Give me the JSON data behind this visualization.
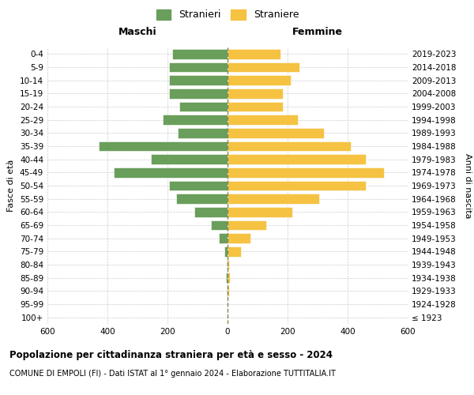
{
  "age_groups": [
    "100+",
    "95-99",
    "90-94",
    "85-89",
    "80-84",
    "75-79",
    "70-74",
    "65-69",
    "60-64",
    "55-59",
    "50-54",
    "45-49",
    "40-44",
    "35-39",
    "30-34",
    "25-29",
    "20-24",
    "15-19",
    "10-14",
    "5-9",
    "0-4"
  ],
  "birth_years": [
    "≤ 1923",
    "1924-1928",
    "1929-1933",
    "1934-1938",
    "1939-1943",
    "1944-1948",
    "1949-1953",
    "1954-1958",
    "1959-1963",
    "1964-1968",
    "1969-1973",
    "1974-1978",
    "1979-1983",
    "1984-1988",
    "1989-1993",
    "1994-1998",
    "1999-2003",
    "2004-2008",
    "2009-2013",
    "2014-2018",
    "2019-2023"
  ],
  "maschi": [
    0,
    0,
    2,
    5,
    3,
    10,
    30,
    55,
    110,
    170,
    195,
    380,
    255,
    430,
    165,
    215,
    160,
    195,
    195,
    195,
    185
  ],
  "femmine": [
    0,
    0,
    5,
    8,
    5,
    45,
    75,
    130,
    215,
    305,
    460,
    520,
    460,
    410,
    320,
    235,
    185,
    185,
    210,
    240,
    175
  ],
  "maschi_color": "#6a9e5b",
  "femmine_color": "#f5c242",
  "bar_height": 0.75,
  "xlim": 600,
  "title": "Popolazione per cittadinanza straniera per età e sesso - 2024",
  "subtitle": "COMUNE DI EMPOLI (FI) - Dati ISTAT al 1° gennaio 2024 - Elaborazione TUTTITALIA.IT",
  "legend_stranieri": "Stranieri",
  "legend_straniere": "Straniere",
  "xlabel_maschi": "Maschi",
  "xlabel_femmine": "Femmine",
  "ylabel_left": "Fasce di età",
  "ylabel_right": "Anni di nascita",
  "background_color": "#ffffff",
  "grid_color": "#cccccc",
  "dashed_line_color": "#888855"
}
